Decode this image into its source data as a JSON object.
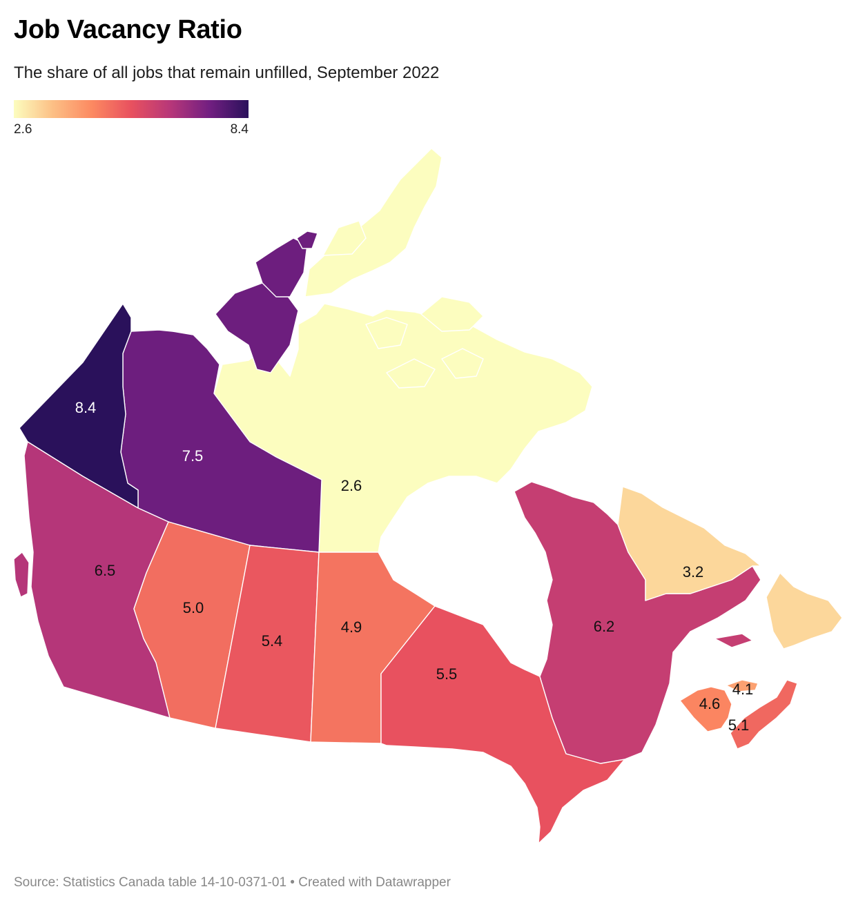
{
  "title": "Job Vacancy Ratio",
  "subtitle": "The share of all jobs that remain unfilled, September 2022",
  "legend": {
    "min_label": "2.6",
    "max_label": "8.4",
    "min": 2.6,
    "max": 8.4
  },
  "colors": {
    "scale": [
      "#fcfdbf",
      "#fcbf85",
      "#fc8961",
      "#e8515f",
      "#b73779",
      "#721f81",
      "#2a115b"
    ],
    "label_light": "#ffffff",
    "label_dark": "#111111"
  },
  "provinces": {
    "yukon": {
      "name": "Yukon",
      "value": 8.4,
      "label": "8.4"
    },
    "nwt": {
      "name": "Northwest Territories",
      "value": 7.5,
      "label": "7.5"
    },
    "nunavut": {
      "name": "Nunavut",
      "value": 2.6,
      "label": "2.6"
    },
    "bc": {
      "name": "British Columbia",
      "value": 6.5,
      "label": "6.5"
    },
    "ab": {
      "name": "Alberta",
      "value": 5.0,
      "label": "5.0"
    },
    "sk": {
      "name": "Saskatchewan",
      "value": 5.4,
      "label": "5.4"
    },
    "mb": {
      "name": "Manitoba",
      "value": 4.9,
      "label": "4.9"
    },
    "on": {
      "name": "Ontario",
      "value": 5.5,
      "label": "5.5"
    },
    "qc": {
      "name": "Quebec",
      "value": 6.2,
      "label": "6.2"
    },
    "nl": {
      "name": "Newfoundland and Labrador",
      "value": 3.2,
      "label": "3.2"
    },
    "nb": {
      "name": "New Brunswick",
      "value": 4.6,
      "label": "4.6"
    },
    "pe": {
      "name": "Prince Edward Island",
      "value": 4.1,
      "label": "4.1"
    },
    "ns": {
      "name": "Nova Scotia",
      "value": 5.1,
      "label": "5.1"
    }
  },
  "source": "Source: Statistics Canada table 14-10-0371-01 • Created with Datawrapper"
}
